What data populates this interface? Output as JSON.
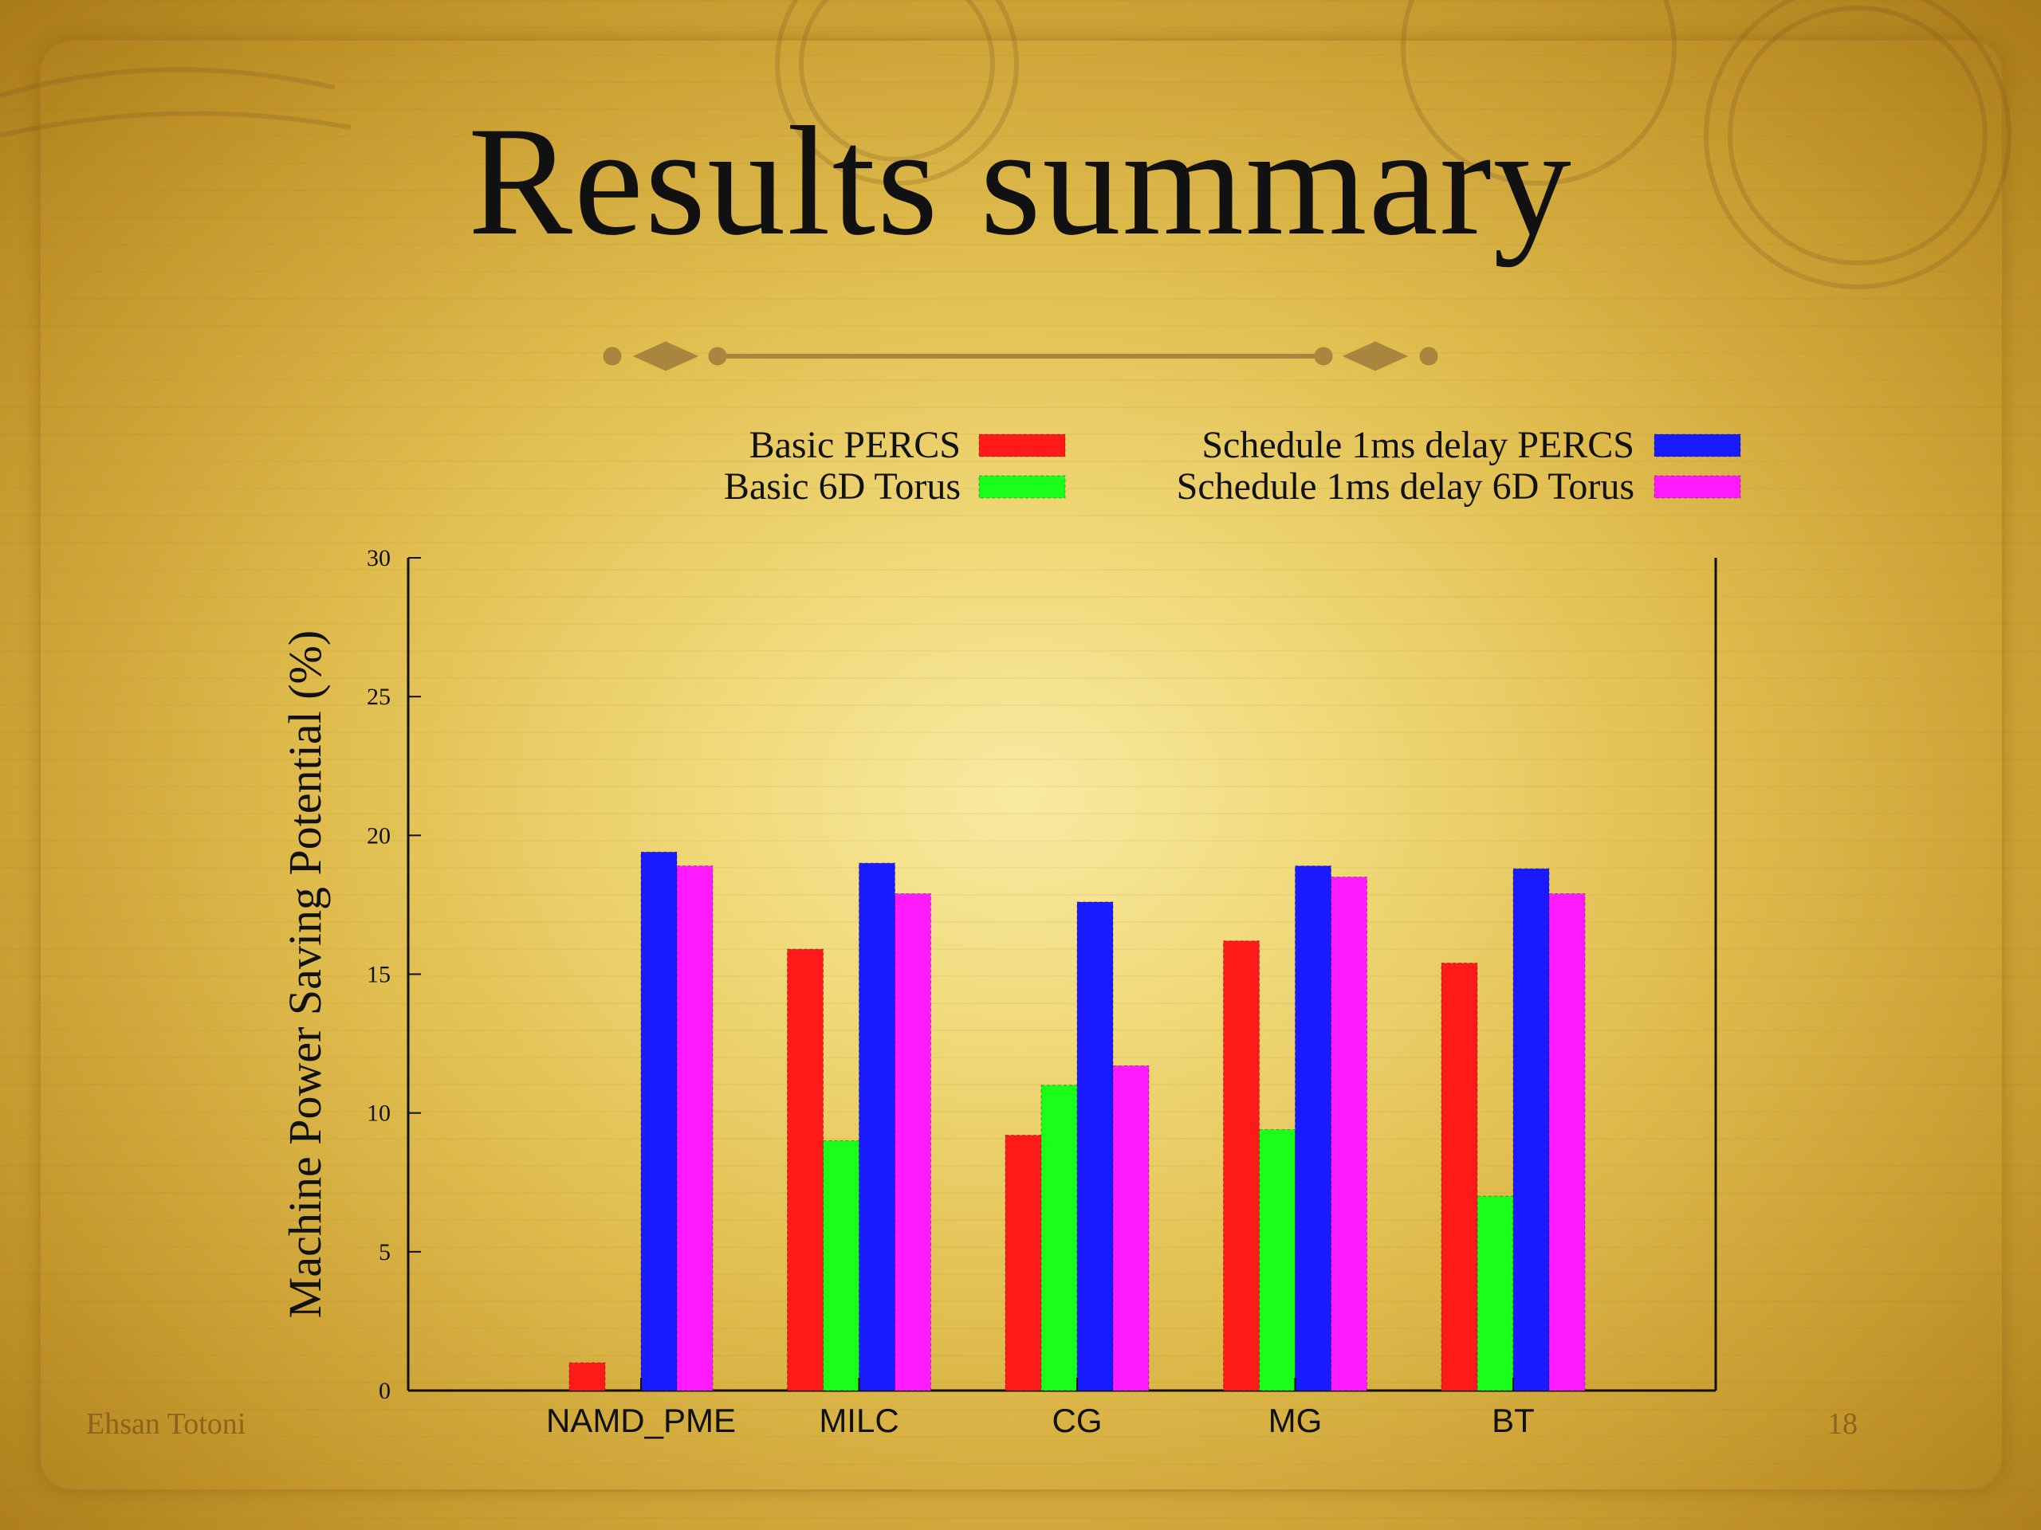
{
  "slide": {
    "title": "Results summary",
    "author": "Ehsan Totoni",
    "page_number": "18"
  },
  "colors": {
    "Basic PERCS": "#ff1a1a",
    "Basic 6D Torus": "#1aff1a",
    "Schedule 1ms delay PERCS": "#1a1aff",
    "Schedule 1ms delay 6D Torus": "#ff1aff"
  },
  "chart_data": {
    "type": "bar",
    "title": "",
    "xlabel": "",
    "ylabel": "Machine Power Saving Potential (%)",
    "ylim": [
      0,
      30
    ],
    "yticks": [
      0,
      5,
      10,
      15,
      20,
      25,
      30
    ],
    "grid": false,
    "legend_position": "top",
    "categories": [
      "NAMD_PME",
      "MILC",
      "CG",
      "MG",
      "BT"
    ],
    "series": [
      {
        "name": "Basic PERCS",
        "values": [
          1.0,
          15.9,
          9.2,
          16.2,
          15.4
        ]
      },
      {
        "name": "Basic 6D Torus",
        "values": [
          null,
          9.0,
          11.0,
          9.4,
          7.0
        ]
      },
      {
        "name": "Schedule 1ms delay PERCS",
        "values": [
          19.4,
          19.0,
          17.6,
          18.9,
          18.8
        ]
      },
      {
        "name": "Schedule 1ms delay 6D Torus",
        "values": [
          18.9,
          17.9,
          11.7,
          18.5,
          17.9
        ]
      }
    ]
  }
}
